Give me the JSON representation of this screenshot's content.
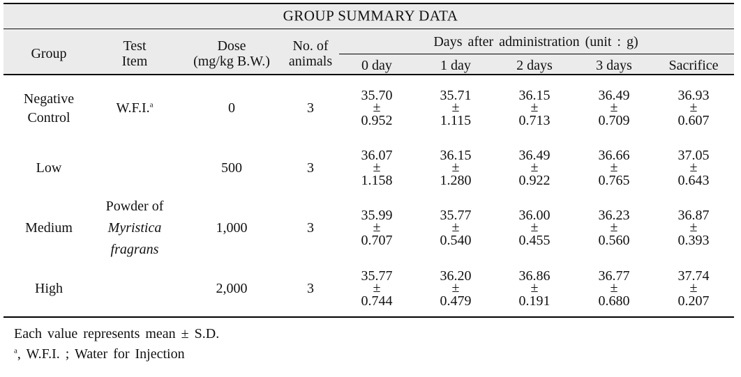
{
  "title": "GROUP SUMMARY DATA",
  "header": {
    "group": "Group",
    "test_item": [
      "Test",
      "Item"
    ],
    "dose": [
      "Dose",
      "(mg/kg B.W.)"
    ],
    "animals": [
      "No. of",
      "animals"
    ],
    "days_title": "Days after administration (unit : g)",
    "days": [
      "0 day",
      "1 day",
      "2 days",
      "3 days",
      "Sacrifice"
    ]
  },
  "pm": "±",
  "rows": [
    {
      "group": [
        "Negative",
        "Control"
      ],
      "test_item": "W.F.I.",
      "test_item_note": "a",
      "dose": "0",
      "animals": "3",
      "values": [
        [
          "35.70",
          "0.952"
        ],
        [
          "35.71",
          "1.115"
        ],
        [
          "36.15",
          "0.713"
        ],
        [
          "36.49",
          "0.709"
        ],
        [
          "36.93",
          "0.607"
        ]
      ]
    },
    {
      "group": [
        "Low"
      ],
      "dose": "500",
      "animals": "3",
      "values": [
        [
          "36.07",
          "1.158"
        ],
        [
          "36.15",
          "1.280"
        ],
        [
          "36.49",
          "0.922"
        ],
        [
          "36.66",
          "0.765"
        ],
        [
          "37.05",
          "0.643"
        ]
      ]
    },
    {
      "group": [
        "Medium"
      ],
      "dose": "1,000",
      "animals": "3",
      "values": [
        [
          "35.99",
          "0.707"
        ],
        [
          "35.77",
          "0.540"
        ],
        [
          "36.00",
          "0.455"
        ],
        [
          "36.23",
          "0.560"
        ],
        [
          "36.87",
          "0.393"
        ]
      ]
    },
    {
      "group": [
        "High"
      ],
      "dose": "2,000",
      "animals": "3",
      "values": [
        [
          "35.77",
          "0.744"
        ],
        [
          "36.20",
          "0.479"
        ],
        [
          "36.86",
          "0.191"
        ],
        [
          "36.77",
          "0.680"
        ],
        [
          "37.74",
          "0.207"
        ]
      ]
    }
  ],
  "shared_test_item": [
    "Powder of",
    "Myristica",
    "fragrans"
  ],
  "footnotes": {
    "note1": "Each value represents mean ± S.D.",
    "note2_mark": "a",
    "note2": ", W.F.I. ; Water for Injection"
  }
}
